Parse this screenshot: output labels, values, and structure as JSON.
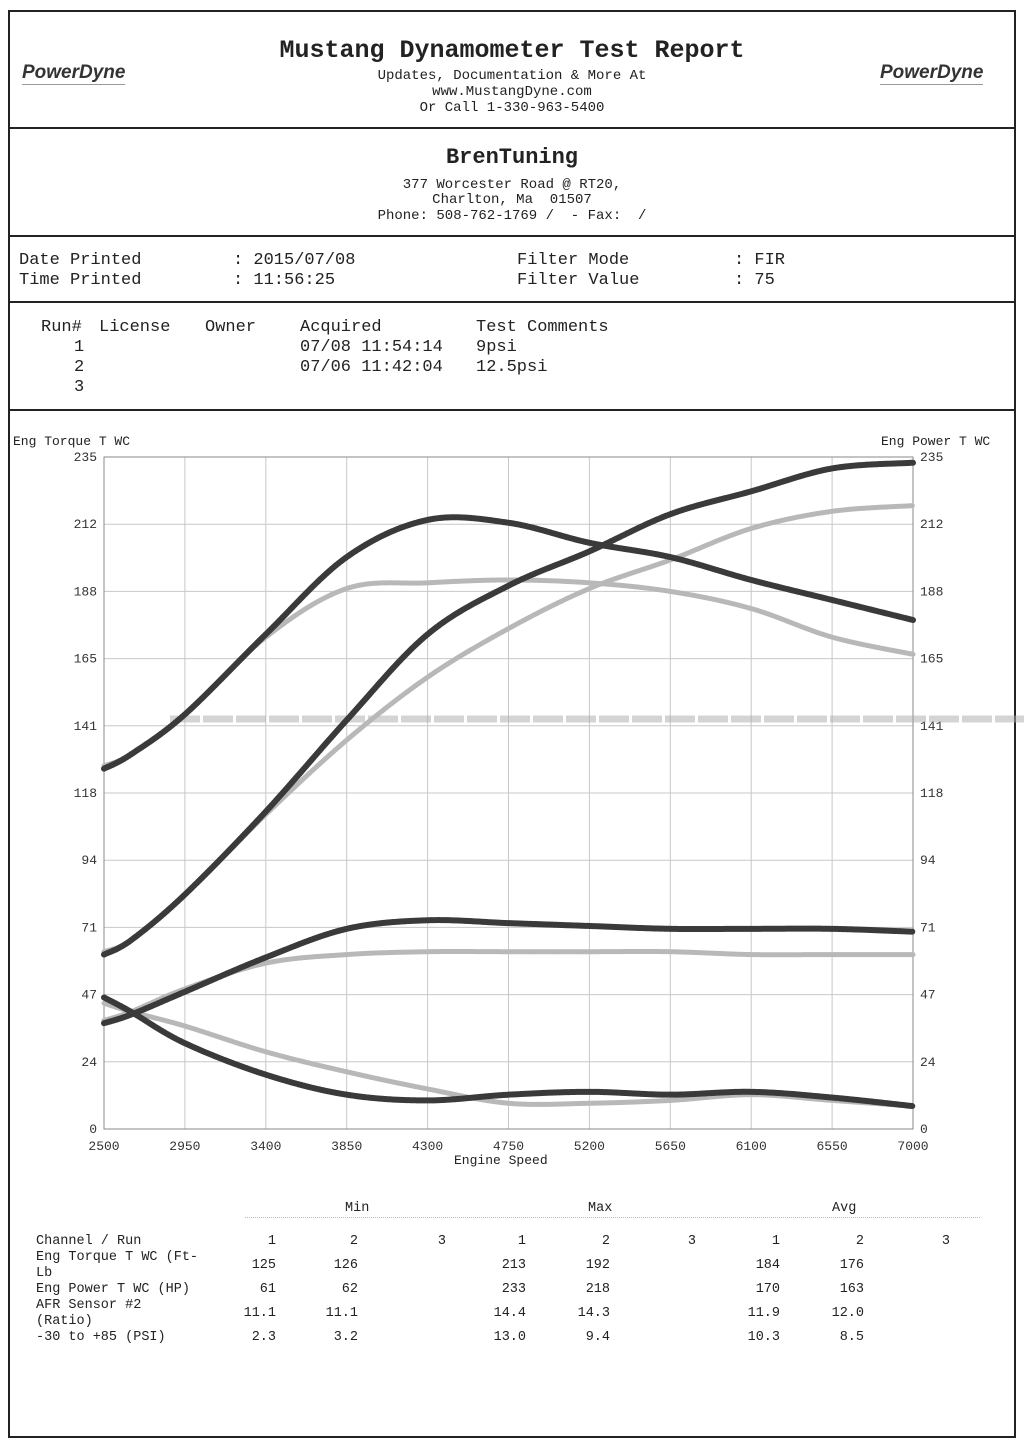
{
  "header": {
    "title": "Mustang Dynamometer Test Report",
    "line1": "Updates, Documentation & More At",
    "line2": "www.MustangDyne.com",
    "line3": "Or Call 1-330-963-5400",
    "logo_left": "PowerDyne",
    "logo_right": "PowerDyne"
  },
  "shop": {
    "name": "BrenTuning",
    "addr1": "377 Worcester Road @ RT20,",
    "addr2": "Charlton, Ma  01507",
    "phone": "Phone: 508-762-1769 /  - Fax:  /"
  },
  "info": {
    "date_label": "Date Printed",
    "date_value": ": 2015/07/08",
    "time_label": "Time Printed",
    "time_value": ": 11:56:25",
    "filter_mode_label": "Filter Mode",
    "filter_mode_value": ": FIR",
    "filter_value_label": "Filter Value",
    "filter_value_value": ": 75"
  },
  "runs": {
    "headers": [
      "Run#",
      "License",
      "Owner",
      "Acquired",
      "Test Comments"
    ],
    "rows": [
      {
        "run": "1",
        "acquired": "07/08 11:54:14",
        "comment": "9psi"
      },
      {
        "run": "2",
        "acquired": "07/06 11:42:04",
        "comment": "12.5psi"
      },
      {
        "run": "3",
        "acquired": "",
        "comment": ""
      }
    ]
  },
  "chart_data": {
    "type": "line",
    "ylabel_left": "Eng Torque T WC",
    "ylabel_right": "Eng Power T WC",
    "xlabel": "Engine Speed",
    "xlim": [
      2500,
      7000
    ],
    "ylim": [
      0,
      235
    ],
    "x_ticks": [
      "2500",
      "2950",
      "3400",
      "3850",
      "4300",
      "4750",
      "5200",
      "5650",
      "6100",
      "6550",
      "7000"
    ],
    "y_ticks": [
      "0",
      "24",
      "47",
      "71",
      "94",
      "118",
      "141",
      "165",
      "188",
      "212",
      "235"
    ],
    "grid": true,
    "x": [
      2500,
      2650,
      2950,
      3400,
      3850,
      4300,
      4750,
      5200,
      5650,
      6100,
      6550,
      7000
    ],
    "series": [
      {
        "name": "Eng Torque Run 1",
        "color": "#3a3a3a",
        "values": [
          126,
          131,
          145,
          173,
          200,
          213,
          212,
          205,
          200,
          192,
          185,
          178
        ]
      },
      {
        "name": "Eng Torque Run 2",
        "color": "#b8b8b8",
        "values": [
          127,
          131,
          145,
          172,
          189,
          191,
          192,
          191,
          188,
          182,
          172,
          166
        ]
      },
      {
        "name": "Eng Power Run 1",
        "color": "#3a3a3a",
        "values": [
          61,
          66,
          82,
          111,
          143,
          173,
          190,
          202,
          215,
          223,
          231,
          233
        ]
      },
      {
        "name": "Eng Power Run 2",
        "color": "#b8b8b8",
        "values": [
          62,
          66,
          82,
          110,
          136,
          158,
          175,
          189,
          199,
          210,
          216,
          218
        ]
      },
      {
        "name": "AFR Sensor #2 Run 1",
        "color": "#3a3a3a",
        "values": [
          37,
          40,
          48,
          60,
          70,
          73,
          72,
          71,
          70,
          70,
          70,
          69
        ]
      },
      {
        "name": "AFR Sensor #2 Run 2",
        "color": "#b8b8b8",
        "values": [
          38,
          41,
          49,
          58,
          61,
          62,
          62,
          62,
          62,
          61,
          61,
          61
        ]
      },
      {
        "name": "-30 to +85 Run 1",
        "color": "#3a3a3a",
        "values": [
          46,
          41,
          30,
          19,
          12,
          10,
          12,
          13,
          12,
          13,
          11,
          8
        ]
      },
      {
        "name": "-30 to +85 Run 2",
        "color": "#b8b8b8",
        "values": [
          44,
          41,
          36,
          27,
          20,
          14,
          9,
          9,
          10,
          12,
          10,
          8
        ]
      }
    ]
  },
  "stats": {
    "groups": [
      "Min",
      "Max",
      "Avg"
    ],
    "header_label": "Channel / Run",
    "run_labels": [
      "1",
      "2",
      "3",
      "1",
      "2",
      "3",
      "1",
      "2",
      "3"
    ],
    "rows": [
      {
        "label": "Eng Torque T WC (Ft-Lb",
        "vals": [
          "125",
          "126",
          "",
          "213",
          "192",
          "",
          "184",
          "176",
          ""
        ]
      },
      {
        "label": "Eng Power T WC (HP)",
        "vals": [
          "61",
          "62",
          "",
          "233",
          "218",
          "",
          "170",
          "163",
          ""
        ]
      },
      {
        "label": "AFR Sensor #2 (Ratio)",
        "vals": [
          "11.1",
          "11.1",
          "",
          "14.4",
          "14.3",
          "",
          "11.9",
          "12.0",
          ""
        ]
      },
      {
        "label": "-30 to +85 (PSI)",
        "vals": [
          "2.3",
          "3.2",
          "",
          "13.0",
          "9.4",
          "",
          "10.3",
          "8.5",
          ""
        ]
      }
    ]
  }
}
